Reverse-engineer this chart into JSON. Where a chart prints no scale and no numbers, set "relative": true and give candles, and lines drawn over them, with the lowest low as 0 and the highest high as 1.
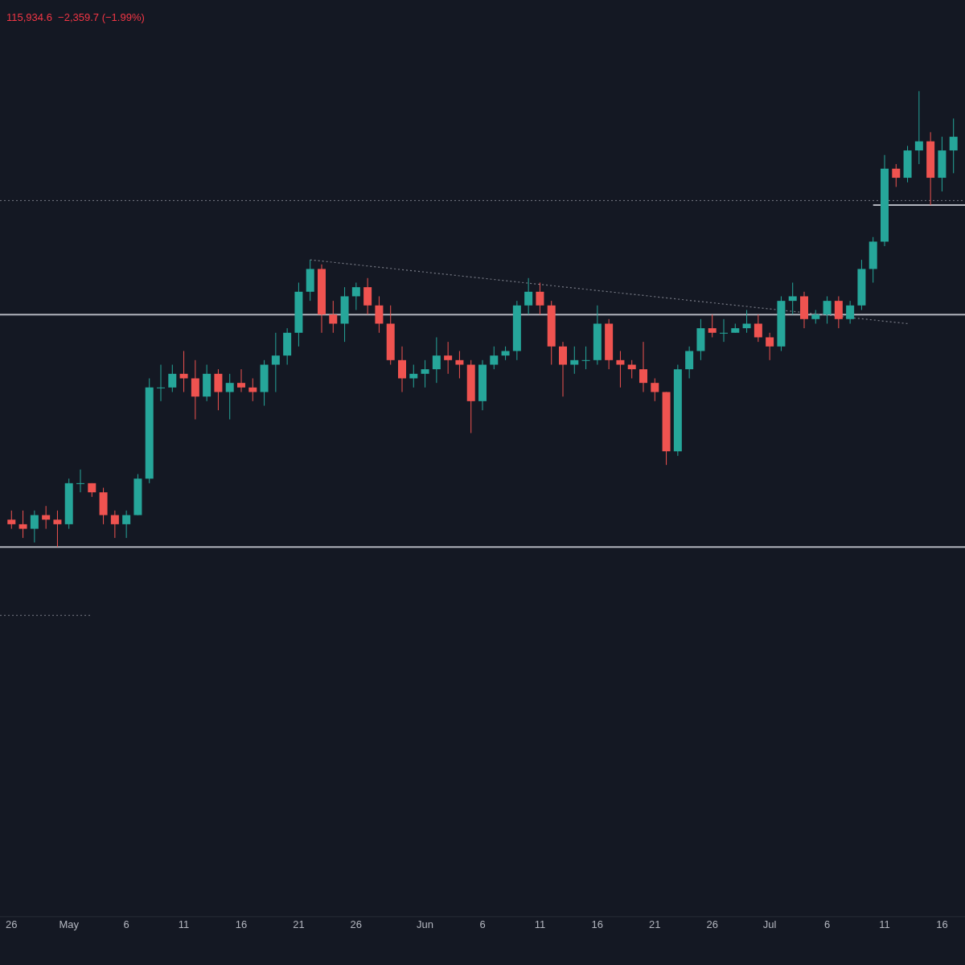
{
  "chart_data": {
    "type": "candlestick",
    "relative": true,
    "annotations": [
      "115,934.6  −2,359.7 (−1.99%)"
    ],
    "xlim": [
      "--04-25",
      "--07-18"
    ],
    "ylim": [
      -0.81,
      1.2
    ],
    "grid": false,
    "legend": false,
    "tick_labels": "x",
    "xticks": [
      {
        "value": "--04-26",
        "label": "26"
      },
      {
        "value": "--05-01",
        "label": "May"
      },
      {
        "value": "--05-06",
        "label": "6"
      },
      {
        "value": "--05-11",
        "label": "11"
      },
      {
        "value": "--05-16",
        "label": "16"
      },
      {
        "value": "--05-21",
        "label": "21"
      },
      {
        "value": "--05-26",
        "label": "26"
      },
      {
        "value": "--06-01",
        "label": "Jun"
      },
      {
        "value": "--06-06",
        "label": "6"
      },
      {
        "value": "--06-11",
        "label": "11"
      },
      {
        "value": "--06-16",
        "label": "16"
      },
      {
        "value": "--06-21",
        "label": "21"
      },
      {
        "value": "--06-26",
        "label": "26"
      },
      {
        "value": "--07-01",
        "label": "Jul"
      },
      {
        "value": "--07-06",
        "label": "6"
      },
      {
        "value": "--07-11",
        "label": "11"
      },
      {
        "value": "--07-16",
        "label": "16"
      }
    ],
    "x": [
      "--04-26",
      "--04-27",
      "--04-28",
      "--04-29",
      "--04-30",
      "--05-01",
      "--05-02",
      "--05-03",
      "--05-04",
      "--05-05",
      "--05-06",
      "--05-07",
      "--05-08",
      "--05-09",
      "--05-10",
      "--05-11",
      "--05-12",
      "--05-13",
      "--05-14",
      "--05-15",
      "--05-16",
      "--05-17",
      "--05-18",
      "--05-19",
      "--05-20",
      "--05-21",
      "--05-22",
      "--05-23",
      "--05-24",
      "--05-25",
      "--05-26",
      "--05-27",
      "--05-28",
      "--05-29",
      "--05-30",
      "--05-31",
      "--06-01",
      "--06-02",
      "--06-03",
      "--06-04",
      "--06-05",
      "--06-06",
      "--06-07",
      "--06-08",
      "--06-09",
      "--06-10",
      "--06-11",
      "--06-12",
      "--06-13",
      "--06-14",
      "--06-15",
      "--06-16",
      "--06-17",
      "--06-18",
      "--06-19",
      "--06-20",
      "--06-21",
      "--06-22",
      "--06-23",
      "--06-24",
      "--06-25",
      "--06-26",
      "--06-27",
      "--06-28",
      "--06-29",
      "--06-30",
      "--07-01",
      "--07-02",
      "--07-03",
      "--07-04",
      "--07-05",
      "--07-06",
      "--07-07",
      "--07-08",
      "--07-09",
      "--07-10",
      "--07-11",
      "--07-12",
      "--07-13",
      "--07-14",
      "--07-15",
      "--07-16",
      "--07-17"
    ],
    "ohlc": [
      [
        0.06,
        0.08,
        0.04,
        0.05
      ],
      [
        0.05,
        0.08,
        0.02,
        0.04
      ],
      [
        0.04,
        0.08,
        0.01,
        0.07
      ],
      [
        0.07,
        0.09,
        0.04,
        0.06
      ],
      [
        0.06,
        0.08,
        0,
        0.05
      ],
      [
        0.05,
        0.15,
        0.04,
        0.14
      ],
      [
        0.14,
        0.17,
        0.12,
        0.14
      ],
      [
        0.14,
        0.14,
        0.11,
        0.12
      ],
      [
        0.12,
        0.13,
        0.05,
        0.07
      ],
      [
        0.07,
        0.08,
        0.02,
        0.05
      ],
      [
        0.05,
        0.08,
        0.02,
        0.07
      ],
      [
        0.07,
        0.16,
        0.07,
        0.15
      ],
      [
        0.15,
        0.37,
        0.14,
        0.35
      ],
      [
        0.35,
        0.4,
        0.32,
        0.35
      ],
      [
        0.35,
        0.4,
        0.34,
        0.38
      ],
      [
        0.38,
        0.43,
        0.34,
        0.37
      ],
      [
        0.37,
        0.41,
        0.28,
        0.33
      ],
      [
        0.33,
        0.4,
        0.32,
        0.38
      ],
      [
        0.38,
        0.39,
        0.3,
        0.34
      ],
      [
        0.34,
        0.38,
        0.28,
        0.36
      ],
      [
        0.36,
        0.39,
        0.34,
        0.35
      ],
      [
        0.35,
        0.37,
        0.32,
        0.34
      ],
      [
        0.34,
        0.41,
        0.31,
        0.4
      ],
      [
        0.4,
        0.47,
        0.34,
        0.42
      ],
      [
        0.42,
        0.48,
        0.4,
        0.47
      ],
      [
        0.47,
        0.58,
        0.44,
        0.56
      ],
      [
        0.56,
        0.63,
        0.54,
        0.61
      ],
      [
        0.61,
        0.62,
        0.47,
        0.51
      ],
      [
        0.51,
        0.54,
        0.47,
        0.49
      ],
      [
        0.49,
        0.57,
        0.45,
        0.55
      ],
      [
        0.55,
        0.58,
        0.52,
        0.57
      ],
      [
        0.57,
        0.59,
        0.51,
        0.53
      ],
      [
        0.53,
        0.55,
        0.47,
        0.49
      ],
      [
        0.49,
        0.53,
        0.4,
        0.41
      ],
      [
        0.41,
        0.44,
        0.34,
        0.37
      ],
      [
        0.37,
        0.4,
        0.35,
        0.38
      ],
      [
        0.38,
        0.41,
        0.35,
        0.39
      ],
      [
        0.39,
        0.46,
        0.36,
        0.42
      ],
      [
        0.42,
        0.45,
        0.38,
        0.41
      ],
      [
        0.41,
        0.43,
        0.37,
        0.4
      ],
      [
        0.4,
        0.41,
        0.25,
        0.32
      ],
      [
        0.32,
        0.41,
        0.3,
        0.4
      ],
      [
        0.4,
        0.44,
        0.39,
        0.42
      ],
      [
        0.42,
        0.44,
        0.41,
        0.43
      ],
      [
        0.43,
        0.54,
        0.41,
        0.53
      ],
      [
        0.53,
        0.59,
        0.51,
        0.56
      ],
      [
        0.56,
        0.58,
        0.51,
        0.53
      ],
      [
        0.53,
        0.54,
        0.4,
        0.44
      ],
      [
        0.44,
        0.45,
        0.33,
        0.4
      ],
      [
        0.4,
        0.44,
        0.38,
        0.41
      ],
      [
        0.41,
        0.44,
        0.39,
        0.41
      ],
      [
        0.41,
        0.53,
        0.4,
        0.49
      ],
      [
        0.49,
        0.5,
        0.39,
        0.41
      ],
      [
        0.41,
        0.43,
        0.35,
        0.4
      ],
      [
        0.4,
        0.41,
        0.37,
        0.39
      ],
      [
        0.39,
        0.45,
        0.34,
        0.36
      ],
      [
        0.36,
        0.37,
        0.32,
        0.34
      ],
      [
        0.34,
        0.34,
        0.18,
        0.21
      ],
      [
        0.21,
        0.4,
        0.2,
        0.39
      ],
      [
        0.39,
        0.44,
        0.37,
        0.43
      ],
      [
        0.43,
        0.5,
        0.41,
        0.48
      ],
      [
        0.48,
        0.51,
        0.46,
        0.47
      ],
      [
        0.47,
        0.5,
        0.45,
        0.47
      ],
      [
        0.47,
        0.49,
        0.47,
        0.48
      ],
      [
        0.48,
        0.52,
        0.47,
        0.49
      ],
      [
        0.49,
        0.51,
        0.45,
        0.46
      ],
      [
        0.46,
        0.47,
        0.41,
        0.44
      ],
      [
        0.44,
        0.55,
        0.43,
        0.54
      ],
      [
        0.54,
        0.58,
        0.51,
        0.55
      ],
      [
        0.55,
        0.56,
        0.48,
        0.5
      ],
      [
        0.5,
        0.52,
        0.49,
        0.51
      ],
      [
        0.51,
        0.55,
        0.49,
        0.54
      ],
      [
        0.54,
        0.55,
        0.48,
        0.5
      ],
      [
        0.5,
        0.54,
        0.49,
        0.53
      ],
      [
        0.53,
        0.63,
        0.52,
        0.61
      ],
      [
        0.61,
        0.68,
        0.58,
        0.67
      ],
      [
        0.67,
        0.86,
        0.66,
        0.83
      ],
      [
        0.83,
        0.84,
        0.79,
        0.81
      ],
      [
        0.81,
        0.88,
        0.8,
        0.87
      ],
      [
        0.87,
        1,
        0.84,
        0.89
      ],
      [
        0.89,
        0.91,
        0.75,
        0.81
      ],
      [
        0.81,
        0.9,
        0.78,
        0.87
      ],
      [
        0.87,
        0.94,
        0.82,
        0.9
      ]
    ],
    "series": [
      {
        "type": "line",
        "color": "#787b86",
        "line_style": "dotted",
        "x": [
          "--05-22",
          "--07-13"
        ],
        "values": [
          0.63,
          0.49
        ]
      },
      {
        "type": "line",
        "color": "#b2b5be",
        "line_style": "solid",
        "x": [
          "--07-10",
          "--07-18"
        ],
        "values": [
          0.75,
          0.75
        ]
      },
      {
        "type": "line",
        "color": "#787b86",
        "line_style": "dotted",
        "x": [
          "--04-25",
          "--05-03"
        ],
        "values": [
          -0.15,
          -0.15
        ]
      }
    ],
    "ref_lines": [
      {
        "axis": "y",
        "value": 0.51,
        "color": "#b2b5be",
        "line_style": "solid"
      },
      {
        "axis": "y",
        "value": 0,
        "color": "#b2b5be",
        "line_style": "solid"
      },
      {
        "axis": "y",
        "value": 0.76,
        "color": "#787b86",
        "line_style": "dotted"
      }
    ]
  }
}
